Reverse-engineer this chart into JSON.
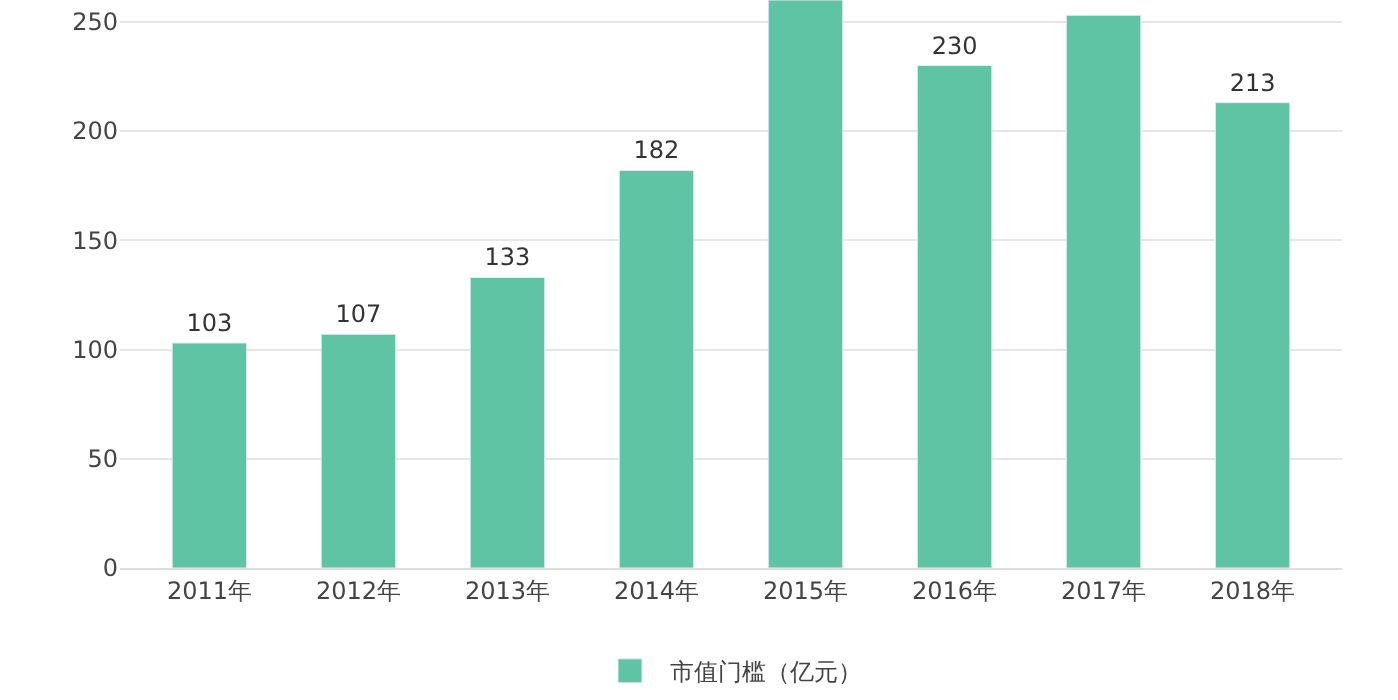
{
  "chart_data": {
    "type": "bar",
    "categories": [
      "2011年",
      "2012年",
      "2013年",
      "2014年",
      "2015年",
      "2016年",
      "2017年",
      "2018年"
    ],
    "series": [
      {
        "name": "市值门槛（亿元）",
        "color": "#5ec4a3",
        "values": [
          103,
          107,
          133,
          182,
          260,
          230,
          253,
          213
        ],
        "value_labels": [
          "103",
          "107",
          "133",
          "182",
          null,
          "230",
          null,
          "213"
        ]
      }
    ],
    "ylim": [
      0,
      260
    ],
    "yticks": [
      0,
      50,
      100,
      150,
      200,
      250
    ],
    "grid": "y",
    "legend": "bottom"
  }
}
